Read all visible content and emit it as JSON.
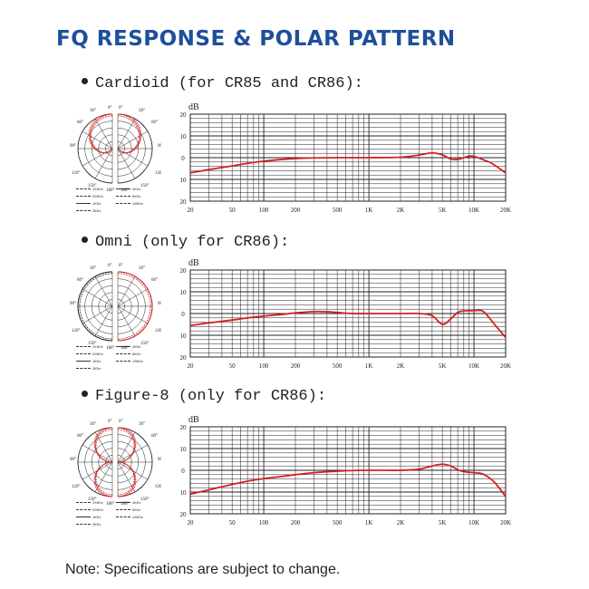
{
  "title": "FQ RESPONSE & POLAR PATTERN",
  "note": "Note: Specifications are subject to change.",
  "colors": {
    "title": "#1d4f9c",
    "curve": "#d42020",
    "grid": "#222222"
  },
  "sections": [
    {
      "label": "Cardioid (for CR85 and CR86):",
      "polar_pattern": "cardioid",
      "polar_angle_labels": [
        "0°",
        "0°",
        "30°",
        "30°",
        "60°",
        "60°",
        "90°",
        "90°",
        "120°",
        "120°",
        "150°",
        "150°",
        "180°",
        "180°"
      ],
      "legend": [
        "250Hz",
        "4KHz",
        "500Hz",
        "8KHz",
        "1KHz",
        "16KHz",
        "2KHz"
      ]
    },
    {
      "label": "Omni (only for CR86):",
      "polar_pattern": "omni",
      "polar_angle_labels": [
        "0°",
        "0°",
        "30°",
        "30°",
        "60°",
        "60°",
        "90°",
        "90°",
        "120°",
        "120°",
        "150°",
        "150°",
        "180°",
        "180°"
      ],
      "legend": [
        "250Hz",
        "4KHz",
        "500Hz",
        "8KHz",
        "1KHz",
        "16KHz",
        "2KHz"
      ]
    },
    {
      "label": "Figure-8 (only for CR86):",
      "polar_pattern": "figure-8",
      "polar_angle_labels": [
        "0°",
        "0°",
        "30°",
        "30°",
        "60°",
        "60°",
        "90°",
        "90°",
        "120°",
        "120°",
        "150°",
        "150°",
        "180°",
        "180°"
      ],
      "legend": [
        "250Hz",
        "4KHz",
        "500Hz",
        "8KHz",
        "1KHz",
        "16KHz",
        "2KHz"
      ]
    }
  ],
  "chart_data": [
    {
      "type": "line",
      "title": "",
      "ylabel": "dB",
      "x_scale": "log",
      "xlim": [
        20,
        20000
      ],
      "ylim": [
        -20,
        20
      ],
      "x_tick_values": [
        20,
        50,
        100,
        200,
        500,
        1000,
        2000,
        5000,
        10000,
        20000
      ],
      "x_tick_labels": [
        "20",
        "50",
        "100",
        "200",
        "500",
        "1K",
        "2K",
        "5K",
        "10K",
        "20K"
      ],
      "y_tick_values": [
        20,
        10,
        0,
        -10,
        -20
      ],
      "y_tick_labels": [
        "20",
        "10",
        "0",
        "10",
        "20"
      ],
      "grid": true,
      "series": [
        {
          "x": [
            20,
            30,
            50,
            70,
            100,
            150,
            200,
            300,
            500,
            1000,
            2000,
            3000,
            4000,
            5000,
            6000,
            7000,
            8000,
            9000,
            10000,
            12000,
            15000,
            20000
          ],
          "y": [
            -7,
            -5.5,
            -3.8,
            -2.6,
            -1.6,
            -0.8,
            -0.4,
            -0.1,
            0,
            0,
            0.2,
            1.2,
            2.2,
            1.3,
            -0.6,
            -0.8,
            0,
            0.7,
            0.6,
            -0.8,
            -2.8,
            -7
          ]
        }
      ]
    },
    {
      "type": "line",
      "title": "",
      "ylabel": "dB",
      "x_scale": "log",
      "xlim": [
        20,
        20000
      ],
      "ylim": [
        -20,
        20
      ],
      "x_tick_values": [
        20,
        50,
        100,
        200,
        500,
        1000,
        2000,
        5000,
        10000,
        20000
      ],
      "x_tick_labels": [
        "20",
        "50",
        "100",
        "200",
        "500",
        "1K",
        "2K",
        "5K",
        "10K",
        "20K"
      ],
      "y_tick_values": [
        20,
        10,
        0,
        -10,
        -20
      ],
      "y_tick_labels": [
        "20",
        "10",
        "0",
        "10",
        "20"
      ],
      "grid": true,
      "series": [
        {
          "x": [
            20,
            30,
            50,
            70,
            100,
            150,
            200,
            300,
            400,
            500,
            700,
            1000,
            2000,
            3000,
            4000,
            5000,
            6000,
            7000,
            8000,
            10000,
            12000,
            14000,
            16000,
            20000
          ],
          "y": [
            -5.5,
            -4.3,
            -3,
            -2,
            -1.2,
            -0.4,
            0.3,
            0.9,
            0.8,
            0.5,
            0,
            0,
            0,
            0,
            -1,
            -5,
            -2.5,
            0.5,
            1.2,
            1.3,
            1.2,
            -2,
            -5.5,
            -11
          ]
        }
      ]
    },
    {
      "type": "line",
      "title": "",
      "ylabel": "dB",
      "x_scale": "log",
      "xlim": [
        20,
        20000
      ],
      "ylim": [
        -20,
        20
      ],
      "x_tick_values": [
        20,
        50,
        100,
        200,
        500,
        1000,
        2000,
        5000,
        10000,
        20000
      ],
      "x_tick_labels": [
        "20",
        "50",
        "100",
        "200",
        "500",
        "1K",
        "2K",
        "5K",
        "10K",
        "20K"
      ],
      "y_tick_values": [
        20,
        10,
        0,
        -10,
        -20
      ],
      "y_tick_labels": [
        "20",
        "10",
        "0",
        "10",
        "20"
      ],
      "grid": true,
      "series": [
        {
          "x": [
            20,
            30,
            50,
            70,
            100,
            150,
            200,
            300,
            500,
            700,
            1000,
            1500,
            2000,
            3000,
            4000,
            5000,
            6000,
            7000,
            8000,
            10000,
            12000,
            14000,
            16000,
            20000
          ],
          "y": [
            -11,
            -9,
            -6.5,
            -5,
            -3.8,
            -2.8,
            -2,
            -1.1,
            -0.4,
            -0.1,
            0,
            0,
            0,
            0.5,
            2,
            2.8,
            2,
            0.3,
            -0.6,
            -1.1,
            -1.6,
            -3.5,
            -6,
            -12
          ]
        }
      ]
    }
  ]
}
